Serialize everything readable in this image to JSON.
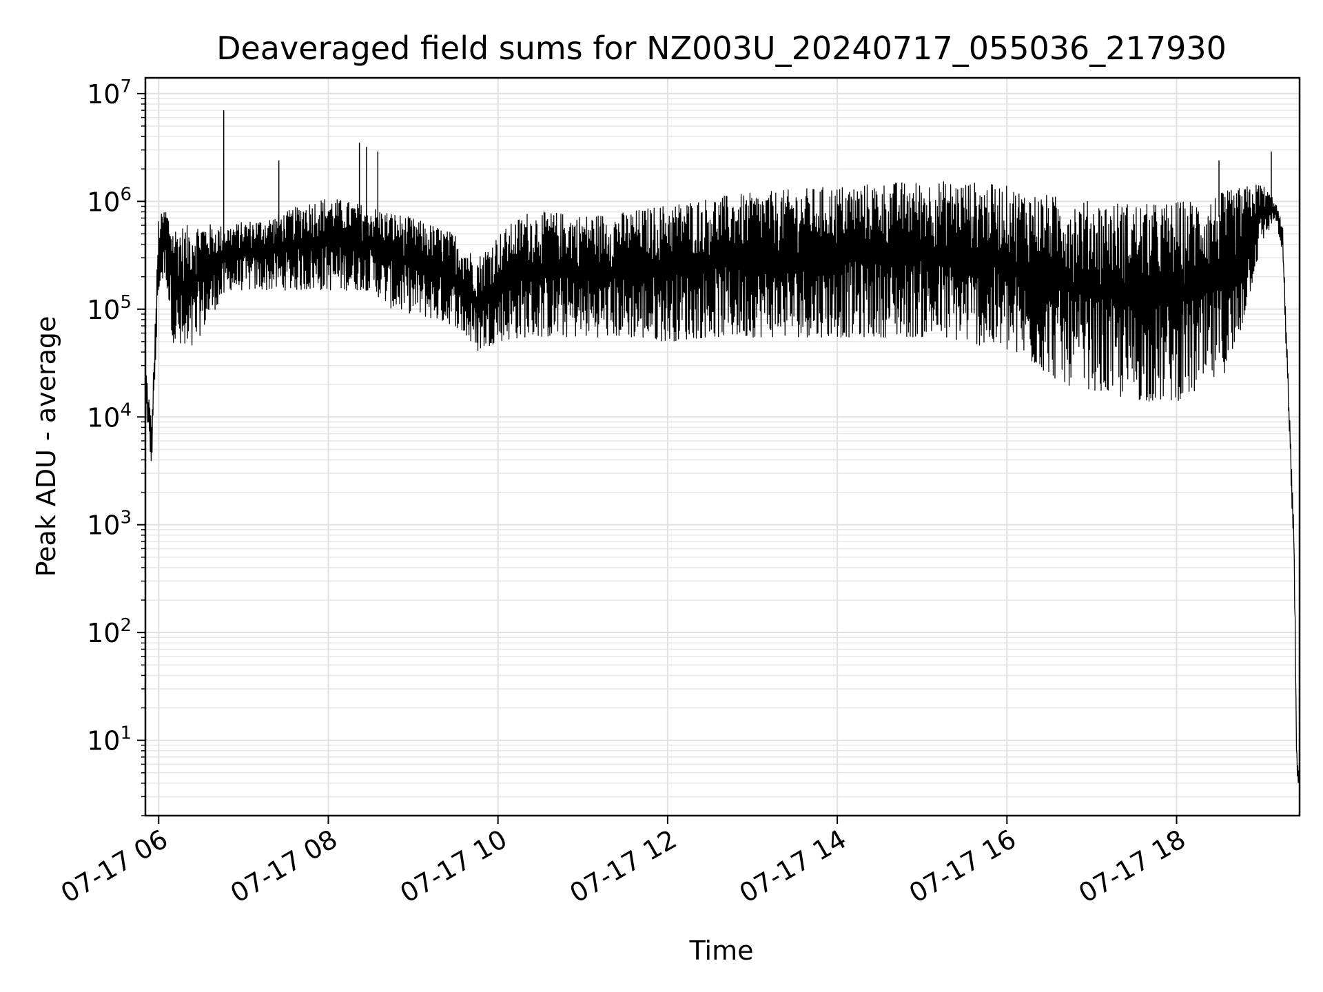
{
  "chart_data": {
    "type": "line",
    "title": "Deaveraged field sums for NZ003U_20240717_055036_217930",
    "xlabel": "Time",
    "ylabel": "Peak ADU - average",
    "yscale": "log",
    "ylim": [
      2,
      14000000
    ],
    "xlim": [
      "2024-07-17 05:50:36",
      "2024-07-17 19:27:00"
    ],
    "grid": {
      "major": true,
      "minor_y": true
    },
    "line_color": "#000000",
    "x_ticks": [
      {
        "time": "2024-07-17 06:00",
        "label": "07-17 06"
      },
      {
        "time": "2024-07-17 08:00",
        "label": "07-17 08"
      },
      {
        "time": "2024-07-17 10:00",
        "label": "07-17 10"
      },
      {
        "time": "2024-07-17 12:00",
        "label": "07-17 12"
      },
      {
        "time": "2024-07-17 14:00",
        "label": "07-17 14"
      },
      {
        "time": "2024-07-17 16:00",
        "label": "07-17 16"
      },
      {
        "time": "2024-07-17 18:00",
        "label": "07-17 18"
      }
    ],
    "y_ticks": [
      {
        "value": 10,
        "base": "10",
        "exp": "1"
      },
      {
        "value": 100,
        "base": "10",
        "exp": "2"
      },
      {
        "value": 1000,
        "base": "10",
        "exp": "3"
      },
      {
        "value": 10000,
        "base": "10",
        "exp": "4"
      },
      {
        "value": 100000,
        "base": "10",
        "exp": "5"
      },
      {
        "value": 1000000,
        "base": "10",
        "exp": "6"
      },
      {
        "value": 10000000,
        "base": "10",
        "exp": "7"
      }
    ],
    "series": [
      {
        "envelope": {
          "time": [
            "2024-07-17 05:50",
            "2024-07-17 05:55",
            "2024-07-17 06:00",
            "2024-07-17 06:05",
            "2024-07-17 06:10",
            "2024-07-17 06:20",
            "2024-07-17 06:30",
            "2024-07-17 06:40",
            "2024-07-17 06:50",
            "2024-07-17 07:00",
            "2024-07-17 07:15",
            "2024-07-17 07:30",
            "2024-07-17 07:45",
            "2024-07-17 08:00",
            "2024-07-17 08:15",
            "2024-07-17 08:30",
            "2024-07-17 08:45",
            "2024-07-17 09:00",
            "2024-07-17 09:15",
            "2024-07-17 09:30",
            "2024-07-17 09:45",
            "2024-07-17 10:00",
            "2024-07-17 10:20",
            "2024-07-17 10:40",
            "2024-07-17 11:00",
            "2024-07-17 11:30",
            "2024-07-17 12:00",
            "2024-07-17 12:30",
            "2024-07-17 13:00",
            "2024-07-17 13:30",
            "2024-07-17 14:00",
            "2024-07-17 14:30",
            "2024-07-17 15:00",
            "2024-07-17 15:30",
            "2024-07-17 16:00",
            "2024-07-17 16:20",
            "2024-07-17 16:40",
            "2024-07-17 17:00",
            "2024-07-17 17:20",
            "2024-07-17 17:40",
            "2024-07-17 18:00",
            "2024-07-17 18:20",
            "2024-07-17 18:40",
            "2024-07-17 19:00",
            "2024-07-17 19:10",
            "2024-07-17 19:15",
            "2024-07-17 19:20",
            "2024-07-17 19:23",
            "2024-07-17 19:25",
            "2024-07-17 19:27"
          ],
          "high": [
            40000,
            9000,
            700000,
            900000,
            600000,
            600000,
            650000,
            600000,
            600000,
            650000,
            700000,
            800000,
            1000000,
            1100000,
            1000000,
            900000,
            800000,
            700000,
            600000,
            500000,
            300000,
            500000,
            800000,
            800000,
            750000,
            800000,
            950000,
            1100000,
            1200000,
            1300000,
            1400000,
            1500000,
            1550000,
            1550000,
            1400000,
            1200000,
            1100000,
            1000000,
            1000000,
            950000,
            1000000,
            1100000,
            1300000,
            1500000,
            1000000,
            600000,
            10000,
            1000,
            10,
            4
          ],
          "low": [
            10000,
            3500,
            150000,
            200000,
            50000,
            30000,
            60000,
            100000,
            150000,
            150000,
            150000,
            150000,
            150000,
            150000,
            150000,
            150000,
            100000,
            90000,
            80000,
            70000,
            40000,
            50000,
            55000,
            55000,
            55000,
            55000,
            50000,
            55000,
            55000,
            55000,
            55000,
            55000,
            55000,
            50000,
            40000,
            30000,
            20000,
            18000,
            15000,
            14000,
            14000,
            18000,
            30000,
            400000,
            700000,
            300000,
            5000,
            500,
            4,
            4
          ]
        },
        "spikes": [
          {
            "time": "2024-07-17 06:46",
            "value": 7000000
          },
          {
            "time": "2024-07-17 07:25",
            "value": 2400000
          },
          {
            "time": "2024-07-17 08:22",
            "value": 3500000
          },
          {
            "time": "2024-07-17 08:27",
            "value": 3200000
          },
          {
            "time": "2024-07-17 08:35",
            "value": 2900000
          },
          {
            "time": "2024-07-17 18:30",
            "value": 2400000
          },
          {
            "time": "2024-07-17 19:07",
            "value": 2900000
          }
        ]
      }
    ]
  }
}
